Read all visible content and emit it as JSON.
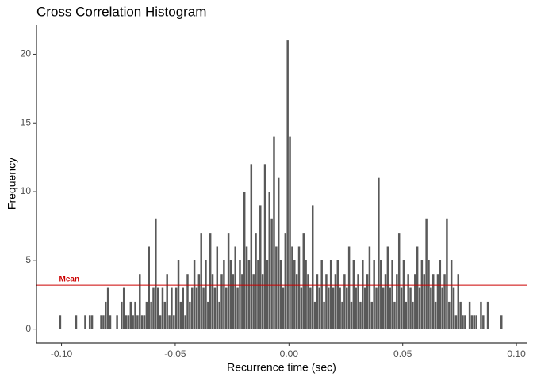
{
  "chart_data": {
    "type": "histogram",
    "title": "Cross Correlation Histogram",
    "x_label": "Recurrence time (sec)",
    "y_label": "Frequency",
    "color": "#595959",
    "bins": [
      -0.101,
      -0.1,
      -0.099,
      -0.098,
      -0.097,
      -0.096,
      -0.095,
      -0.094,
      -0.093,
      -0.092,
      -0.091,
      -0.09,
      -0.089,
      -0.088,
      -0.087,
      -0.086,
      -0.085,
      -0.084,
      -0.083,
      -0.082,
      -0.081,
      -0.08,
      -0.079,
      -0.078,
      -0.077,
      -0.076,
      -0.075,
      -0.074,
      -0.073,
      -0.072,
      -0.071,
      -0.07,
      -0.069,
      -0.068,
      -0.067,
      -0.066,
      -0.065,
      -0.064,
      -0.063,
      -0.062,
      -0.061,
      -0.06,
      -0.059,
      -0.058,
      -0.057,
      -0.056,
      -0.055,
      -0.054,
      -0.053,
      -0.052,
      -0.051,
      -0.05,
      -0.049,
      -0.048,
      -0.047,
      -0.046,
      -0.045,
      -0.044,
      -0.043,
      -0.042,
      -0.041,
      -0.04,
      -0.039,
      -0.038,
      -0.037,
      -0.036,
      -0.035,
      -0.034,
      -0.033,
      -0.032,
      -0.031,
      -0.03,
      -0.029,
      -0.028,
      -0.027,
      -0.026,
      -0.025,
      -0.024,
      -0.023,
      -0.022,
      -0.021,
      -0.02,
      -0.019,
      -0.018,
      -0.017,
      -0.016,
      -0.015,
      -0.014,
      -0.013,
      -0.012,
      -0.011,
      -0.01,
      -0.009,
      -0.008,
      -0.007,
      -0.006,
      -0.005,
      -0.004,
      -0.003,
      -0.002,
      -0.001,
      0,
      0.001,
      0.002,
      0.003,
      0.004,
      0.005,
      0.006,
      0.007,
      0.008,
      0.009,
      0.01,
      0.011,
      0.012,
      0.013,
      0.014,
      0.015,
      0.016,
      0.017,
      0.018,
      0.019,
      0.02,
      0.021,
      0.022,
      0.023,
      0.024,
      0.025,
      0.026,
      0.027,
      0.028,
      0.029,
      0.03,
      0.031,
      0.032,
      0.033,
      0.034,
      0.035,
      0.036,
      0.037,
      0.038,
      0.039,
      0.04,
      0.041,
      0.042,
      0.043,
      0.044,
      0.045,
      0.046,
      0.047,
      0.048,
      0.049,
      0.05,
      0.051,
      0.052,
      0.053,
      0.054,
      0.055,
      0.056,
      0.057,
      0.058,
      0.059,
      0.06,
      0.061,
      0.062,
      0.063,
      0.064,
      0.065,
      0.066,
      0.067,
      0.068,
      0.069,
      0.07,
      0.071,
      0.072,
      0.073,
      0.074,
      0.075,
      0.076,
      0.077,
      0.078,
      0.079,
      0.08,
      0.081,
      0.082,
      0.083,
      0.084,
      0.085,
      0.086,
      0.087,
      0.088,
      0.089,
      0.09,
      0.091,
      0.092,
      0.093,
      0.094,
      0.095
    ],
    "counts": [
      1,
      0,
      0,
      0,
      0,
      0,
      0,
      1,
      0,
      0,
      0,
      1,
      0,
      1,
      1,
      0,
      0,
      0,
      1,
      1,
      2,
      3,
      1,
      0,
      0,
      1,
      0,
      2,
      3,
      1,
      1,
      2,
      1,
      2,
      1,
      4,
      1,
      1,
      2,
      6,
      2,
      3,
      8,
      3,
      1,
      3,
      2,
      4,
      1,
      3,
      1,
      3,
      5,
      2,
      3,
      1,
      4,
      2,
      3,
      5,
      3,
      4,
      7,
      3,
      5,
      2,
      7,
      4,
      3,
      6,
      2,
      4,
      5,
      3,
      7,
      5,
      4,
      6,
      3,
      5,
      4,
      10,
      6,
      5,
      12,
      4,
      7,
      5,
      9,
      4,
      12,
      5,
      10,
      8,
      14,
      6,
      11,
      5,
      3,
      7,
      21,
      14,
      6,
      5,
      4,
      6,
      3,
      7,
      5,
      4,
      3,
      9,
      2,
      4,
      3,
      5,
      2,
      4,
      3,
      5,
      3,
      4,
      5,
      3,
      2,
      4,
      3,
      6,
      2,
      5,
      3,
      4,
      2,
      5,
      3,
      4,
      6,
      2,
      5,
      3,
      11,
      5,
      3,
      4,
      6,
      3,
      5,
      2,
      4,
      7,
      3,
      5,
      2,
      4,
      3,
      2,
      4,
      6,
      3,
      5,
      4,
      8,
      5,
      3,
      4,
      2,
      4,
      5,
      3,
      4,
      8,
      2,
      5,
      3,
      1,
      4,
      2,
      1,
      1,
      0,
      2,
      1,
      1,
      1,
      0,
      2,
      1,
      0,
      2,
      0,
      0,
      0,
      0,
      0,
      1,
      0
    ],
    "mean_line": {
      "value": 3.2,
      "label": "Mean",
      "color": "#cc0000"
    },
    "xlim": [
      -0.111,
      0.1045
    ],
    "ylim": [
      -1,
      22.1
    ],
    "xticks": [
      {
        "value": -0.1,
        "label": "-0.10"
      },
      {
        "value": -0.05,
        "label": "-0.05"
      },
      {
        "value": 0,
        "label": "0.00"
      },
      {
        "value": 0.05,
        "label": "0.05"
      },
      {
        "value": 0.1,
        "label": "0.10"
      }
    ],
    "yticks": [
      0,
      5,
      10,
      15,
      20
    ],
    "grid": false
  }
}
